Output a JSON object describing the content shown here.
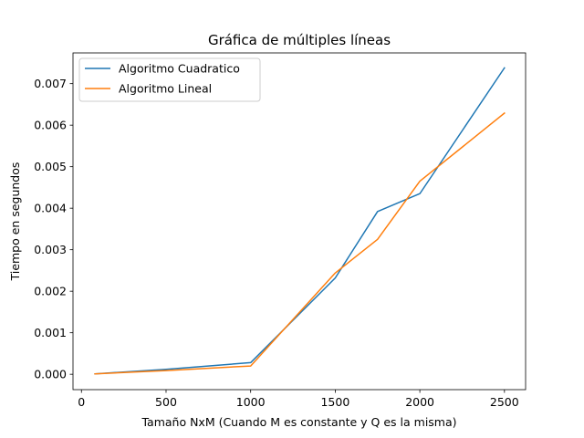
{
  "chart_data": {
    "type": "line",
    "title": "Gráfica de múltiples líneas",
    "xlabel": "Tamaño NxM (Cuando M es constante y Q es la misma)",
    "ylabel": "Tiempo en segundos",
    "xlim": [
      -50,
      2625
    ],
    "ylim": [
      -0.00037,
      0.00774
    ],
    "x_ticks": [
      0,
      500,
      1000,
      1500,
      2000,
      2500
    ],
    "x_tick_labels": [
      "0",
      "500",
      "1000",
      "1500",
      "2000",
      "2500"
    ],
    "y_ticks": [
      0,
      0.001,
      0.002,
      0.003,
      0.004,
      0.005,
      0.006,
      0.007
    ],
    "y_tick_labels": [
      "0.000",
      "0.001",
      "0.002",
      "0.003",
      "0.004",
      "0.005",
      "0.006",
      "0.007"
    ],
    "grid": false,
    "legend_position": "top-left",
    "series": [
      {
        "name": "Algoritmo Cuadratico",
        "color": "#1f77b4",
        "x": [
          80,
          500,
          1000,
          1500,
          1750,
          2000,
          2500
        ],
        "y": [
          1e-05,
          0.00012,
          0.00028,
          0.00232,
          0.00392,
          0.00435,
          0.00738
        ]
      },
      {
        "name": "Algoritmo Lineal",
        "color": "#ff7f0e",
        "x": [
          80,
          500,
          1000,
          1500,
          1750,
          2000,
          2500
        ],
        "y": [
          1e-05,
          9e-05,
          0.0002,
          0.00244,
          0.00325,
          0.00465,
          0.00629
        ]
      }
    ]
  }
}
